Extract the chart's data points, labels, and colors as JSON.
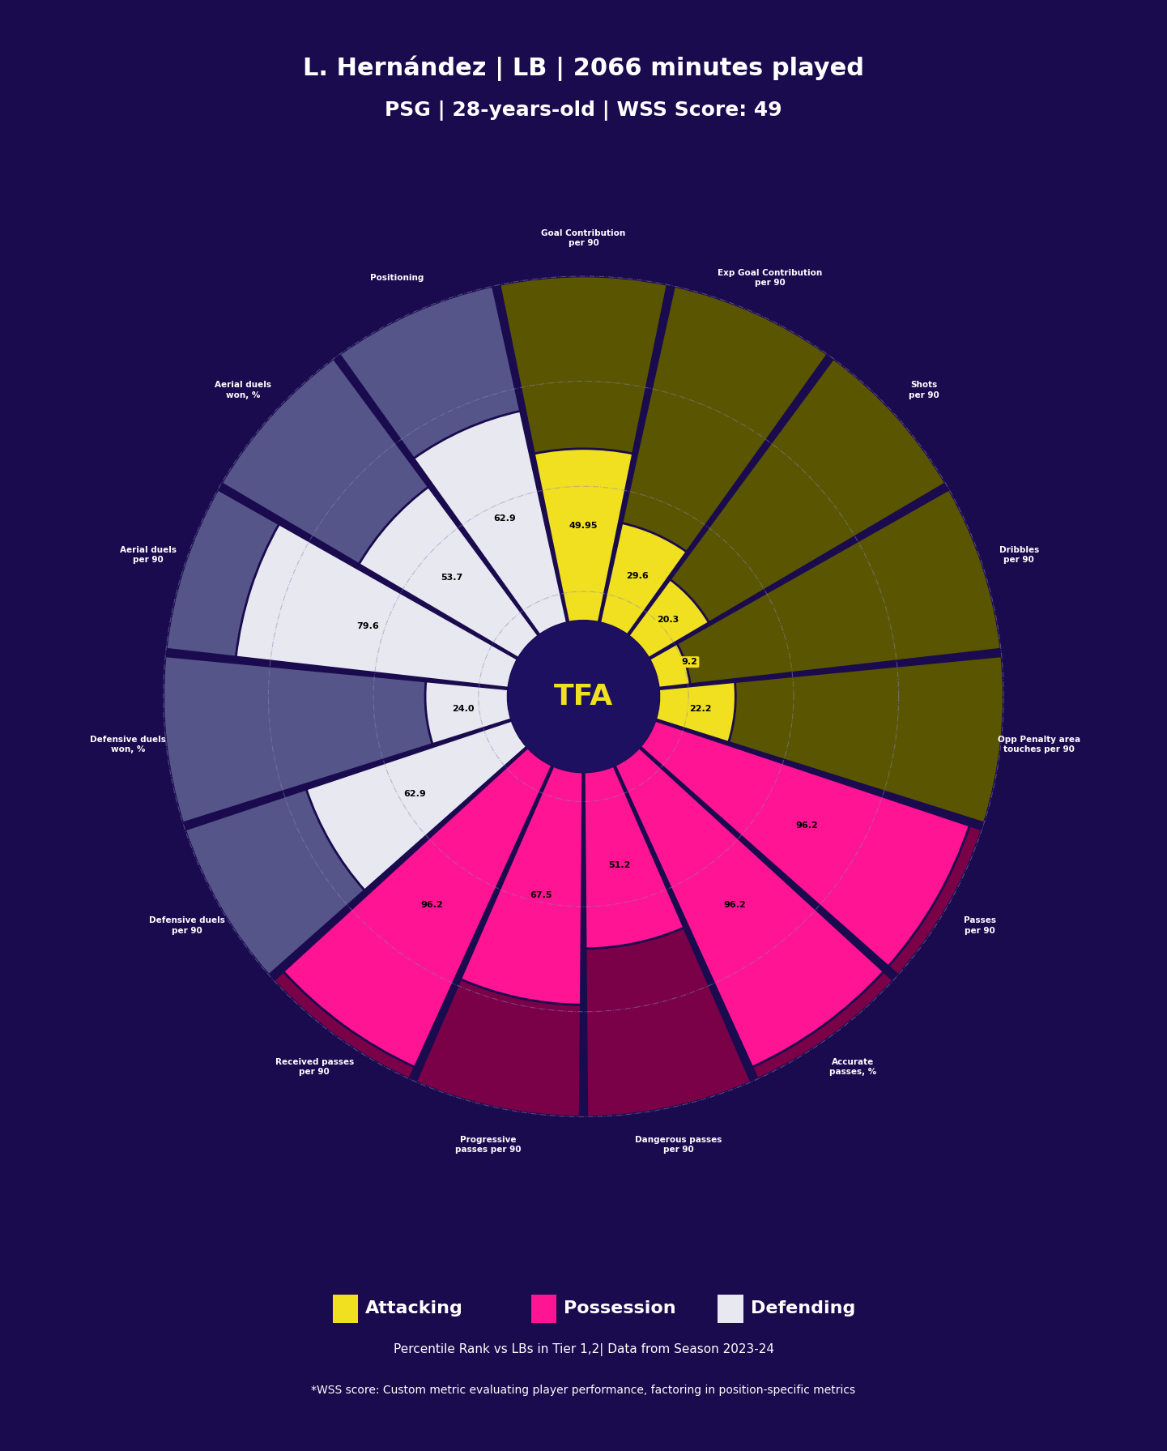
{
  "title_line1": "L. Hernández | LB | 2066 minutes played",
  "title_line2": "PSG | 28-years-old | WSS Score: 49",
  "metrics": [
    "Goal Contribution\nper 90",
    "Exp Goal Contribution\nper 90",
    "Shots\nper 90",
    "Dribbles\nper 90",
    "Opp Penalty area\ntouches per 90",
    "Passes\nper 90",
    "Accurate\npasses, %",
    "Dangerous passes\nper 90",
    "Progressive\npasses per 90",
    "Received passes\nper 90",
    "Defensive duels\nper 90",
    "Defensive duels\nwon, %",
    "Aerial duels\nper 90",
    "Aerial duels\nwon, %",
    "Positioning"
  ],
  "values": [
    49.95,
    29.6,
    20.3,
    9.2,
    22.2,
    96.2,
    96.2,
    51.2,
    67.5,
    96.2,
    62.9,
    24.0,
    79.6,
    53.7,
    62.9
  ],
  "categories": [
    "attacking",
    "attacking",
    "attacking",
    "attacking",
    "attacking",
    "possession",
    "possession",
    "possession",
    "possession",
    "possession",
    "defending",
    "defending",
    "defending",
    "defending",
    "defending"
  ],
  "color_attacking": "#f0e020",
  "color_possession": "#ff1493",
  "color_defending": "#e8e8f0",
  "bg_attacking": "#5a5500",
  "bg_possession": "#7a0048",
  "bg_defending": "#55558a",
  "bg_color": "#1a0a4e",
  "center_color": "#1e1060",
  "tfa_color": "#f0e020",
  "label_color": "#ffffff",
  "grid_color": "#8888bb",
  "legend_labels": [
    "Attacking",
    "Possession",
    "Defending"
  ],
  "legend_colors": [
    "#f0e020",
    "#ff1493",
    "#e8e8f0"
  ],
  "subtitle": "Percentile Rank vs LBs in Tier 1,2| Data from Season 2023-24",
  "footnote": "*WSS score: Custom metric evaluating player performance, factoring in position-specific metrics",
  "max_val": 100,
  "inner_r": 18,
  "outer_r": 100,
  "tfa_text": "TFA"
}
